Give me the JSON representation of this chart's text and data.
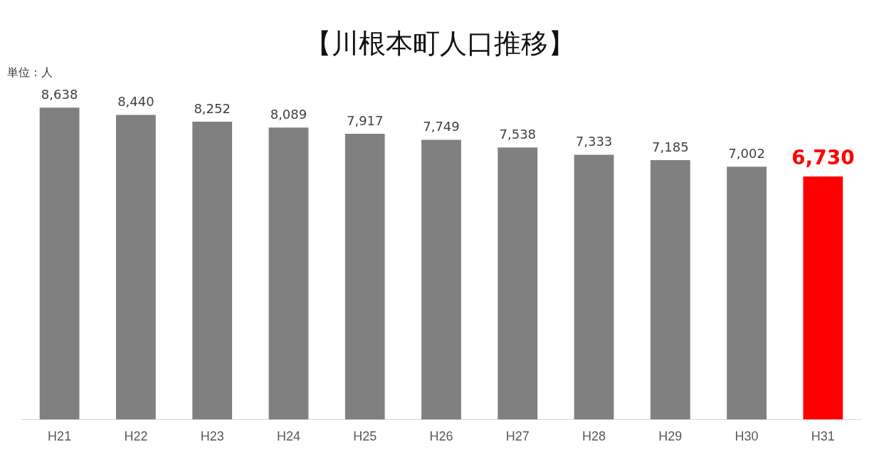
{
  "chart_data": {
    "type": "bar",
    "title": "【川根本町人口推移】",
    "annotations": [
      "単位：人"
    ],
    "categories": [
      "H21",
      "H22",
      "H23",
      "H24",
      "H25",
      "H26",
      "H27",
      "H28",
      "H29",
      "H30",
      "H31"
    ],
    "values": [
      8638,
      8440,
      8252,
      8089,
      7917,
      7749,
      7538,
      7333,
      7185,
      7002,
      6730
    ],
    "colors": [
      "#808080",
      "#808080",
      "#808080",
      "#808080",
      "#808080",
      "#808080",
      "#808080",
      "#808080",
      "#808080",
      "#808080",
      "#ff0000"
    ],
    "value_labels": [
      "8,638",
      "8,440",
      "8,252",
      "8,089",
      "7,917",
      "7,749",
      "7,538",
      "7,333",
      "7,185",
      "7,002",
      "6,730"
    ],
    "grid": false,
    "legend": false
  }
}
